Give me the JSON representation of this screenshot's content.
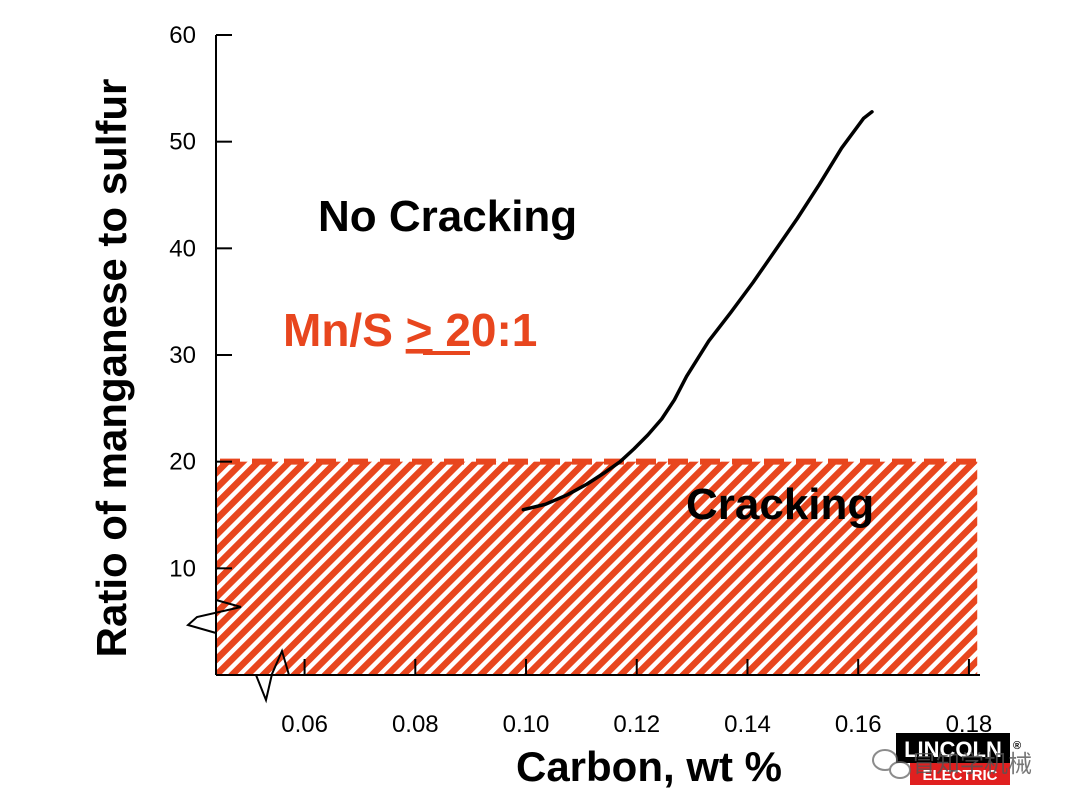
{
  "chart_data": {
    "type": "line",
    "title": "",
    "xlabel": "Carbon, wt %",
    "ylabel": "Ratio of manganese to sulfur",
    "xlim": [
      0.044,
      0.182
    ],
    "ylim": [
      0,
      60
    ],
    "x_ticks": [
      0.06,
      0.08,
      0.1,
      0.12,
      0.14,
      0.16,
      0.18
    ],
    "x_tick_labels": [
      "0.06",
      "0.08",
      "0.10",
      "0.12",
      "0.14",
      "0.16",
      "0.18"
    ],
    "y_ticks": [
      10,
      20,
      30,
      40,
      50,
      60
    ],
    "y_tick_labels": [
      "10",
      "20",
      "30",
      "40",
      "50",
      "60"
    ],
    "grid": false,
    "axis_breaks": [
      "x",
      "y"
    ],
    "series": [
      {
        "x": [
          0.0995,
          0.1035,
          0.1075,
          0.111,
          0.114,
          0.117,
          0.1195,
          0.122,
          0.1245,
          0.1268,
          0.129,
          0.133,
          0.137,
          0.141,
          0.145,
          0.149,
          0.153,
          0.157,
          0.161,
          0.1625
        ],
        "y": [
          15.5,
          16.0,
          16.9,
          17.9,
          18.9,
          20.0,
          21.2,
          22.5,
          24.0,
          25.8,
          28.0,
          31.3,
          34.0,
          36.8,
          39.8,
          42.8,
          46.0,
          49.4,
          52.2,
          52.8
        ],
        "color": "#000000"
      }
    ],
    "regions": [
      {
        "label": "Cracking",
        "x_range": [
          0.044,
          0.1815
        ],
        "y_range": [
          0,
          20
        ],
        "fill": "hatched",
        "color": "#e8461e"
      }
    ],
    "threshold_line": {
      "y": 20,
      "style": "dashed",
      "color": "#e8461e"
    },
    "annotations": [
      {
        "text": "No Cracking",
        "color": "#000000"
      },
      {
        "text_parts": [
          "Mn/S ",
          ">",
          " 20:1"
        ],
        "underlined_part": ">",
        "color": "#e8461e"
      },
      {
        "text": "Cracking",
        "color": "#000000"
      }
    ]
  },
  "logo": {
    "line1": "LINCOLN",
    "registered_mark": "®",
    "line2": "ELECTRIC"
  },
  "watermark": {
    "text": "冒知学机械"
  },
  "colors": {
    "accent": "#e8461e",
    "axis": "#000000",
    "curve": "#000000",
    "logo_red": "#e02020"
  }
}
